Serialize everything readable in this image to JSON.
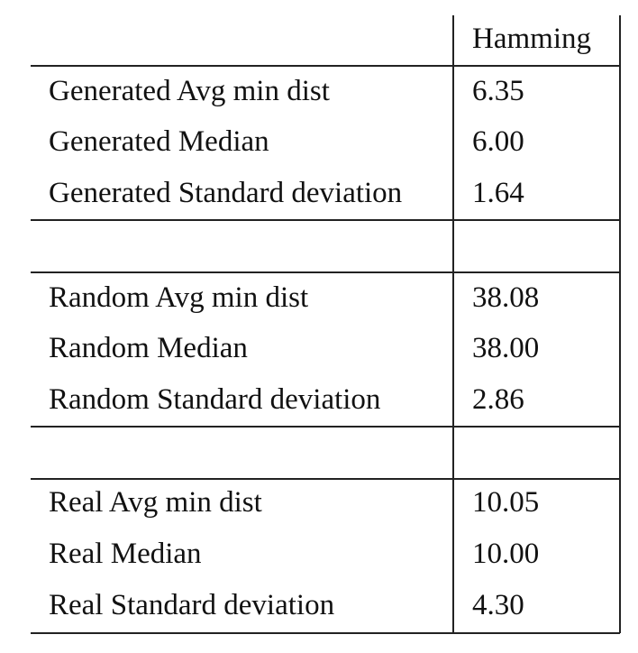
{
  "table": {
    "header": "Hamming",
    "groups": [
      {
        "rows": [
          {
            "label": "Generated Avg min dist",
            "value": "6.35"
          },
          {
            "label": "Generated Median",
            "value": "6.00"
          },
          {
            "label": "Generated Standard deviation",
            "value": "1.64"
          }
        ]
      },
      {
        "rows": [
          {
            "label": "Random Avg min dist",
            "value": "38.08"
          },
          {
            "label": "Random Median",
            "value": "38.00"
          },
          {
            "label": "Random Standard deviation",
            "value": "2.86"
          }
        ]
      },
      {
        "rows": [
          {
            "label": "Real Avg min dist",
            "value": "10.05"
          },
          {
            "label": "Real Median",
            "value": "10.00"
          },
          {
            "label": "Real Standard deviation",
            "value": "4.30"
          }
        ]
      }
    ]
  }
}
